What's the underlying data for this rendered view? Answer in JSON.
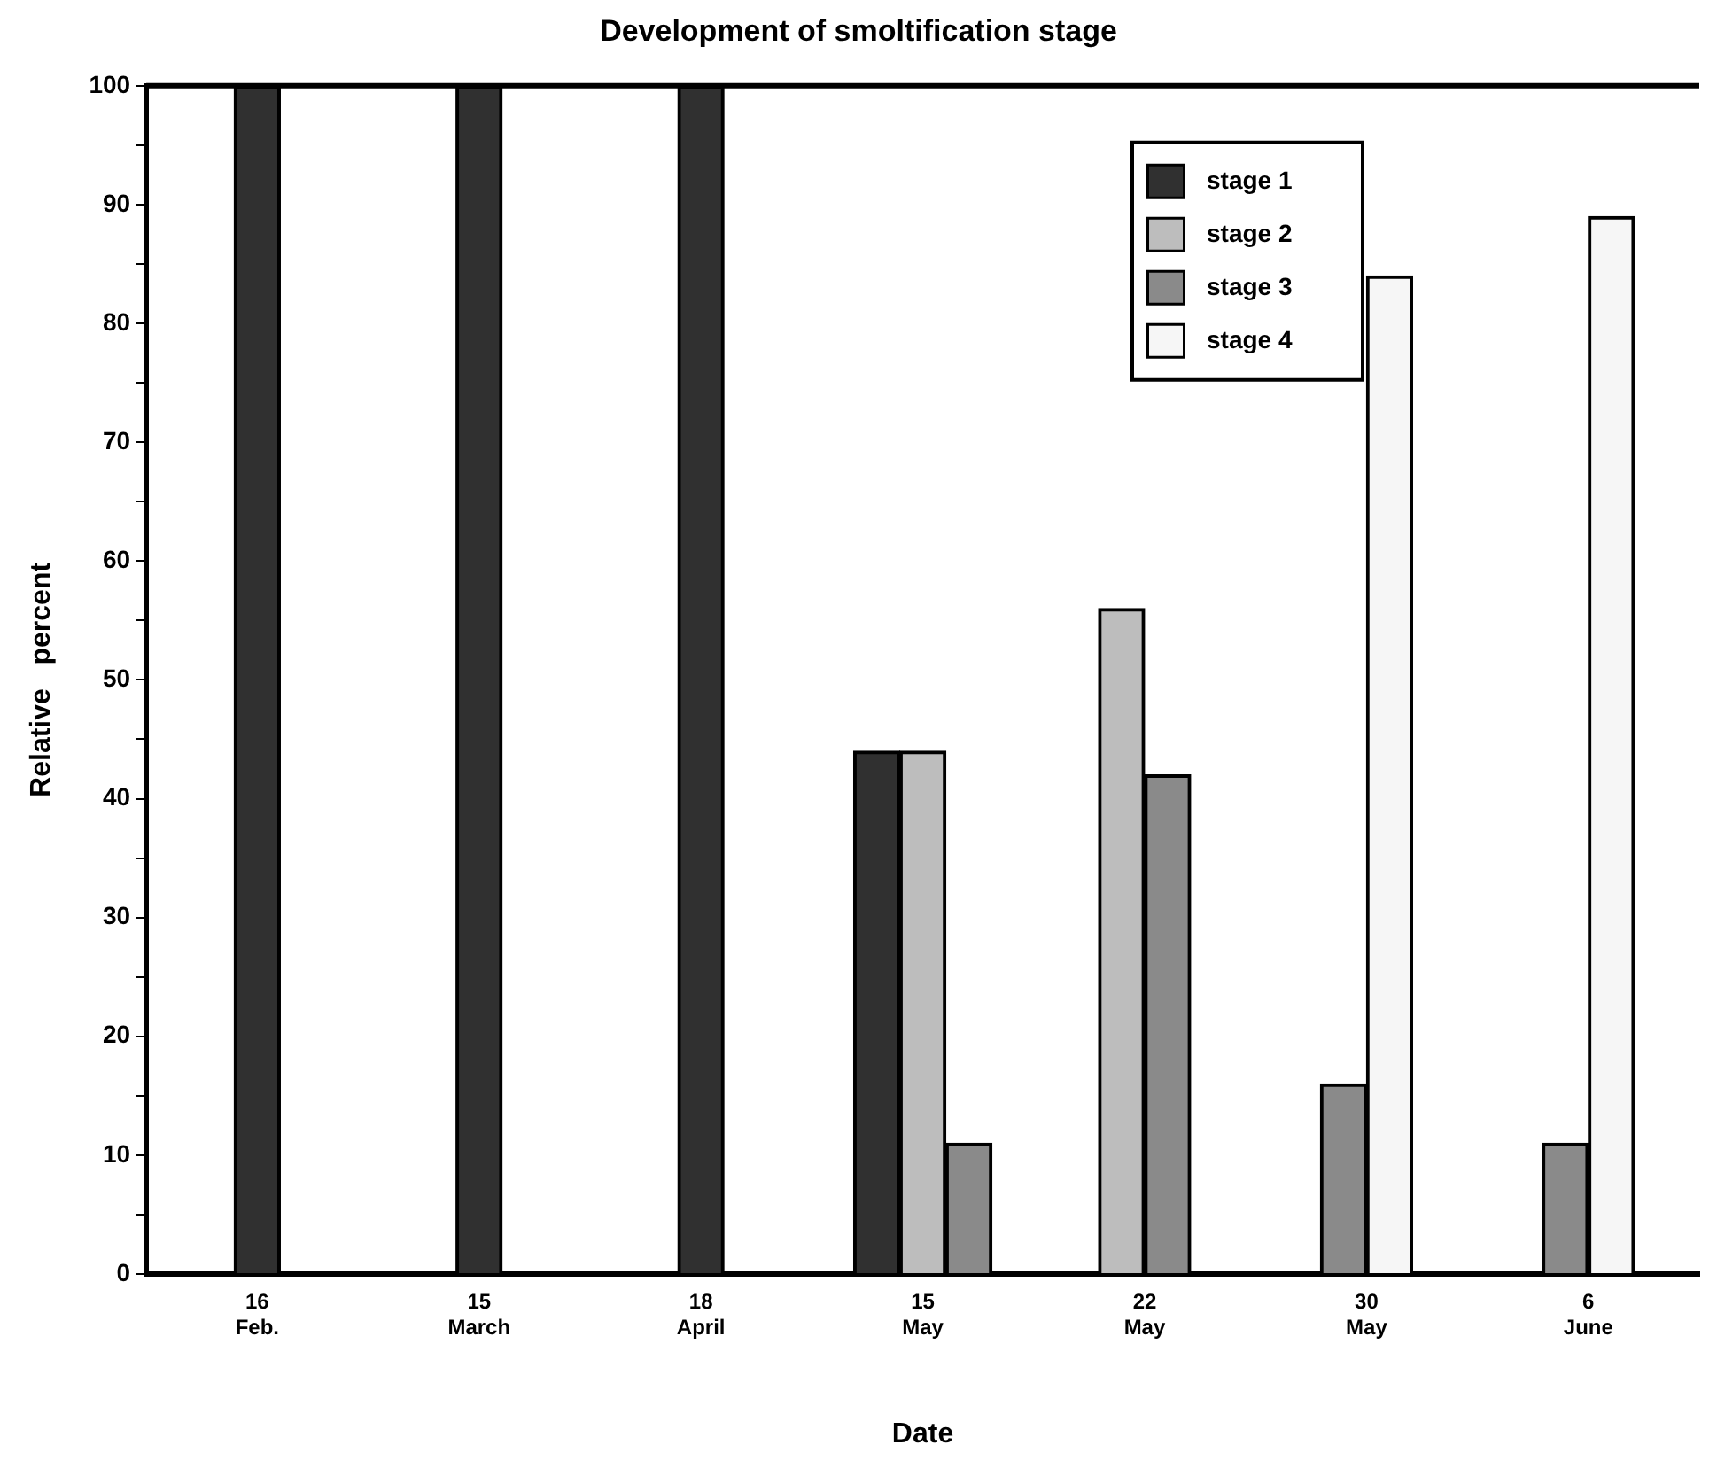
{
  "chart_data": {
    "type": "bar",
    "title": "Development of smoltification stage",
    "xlabel": "Date",
    "ylabel": "Relative   percent",
    "categories": [
      "16 Feb.",
      "15 March",
      "18 April",
      "15 May",
      "22 May",
      "30 May",
      "6 June"
    ],
    "series": [
      {
        "name": "stage 1",
        "color": "#303030",
        "values": [
          100,
          100,
          100,
          44,
          null,
          null,
          null
        ]
      },
      {
        "name": "stage 2",
        "color": "#bdbdbd",
        "values": [
          null,
          null,
          null,
          44,
          56,
          null,
          null
        ]
      },
      {
        "name": "stage 3",
        "color": "#8a8a8a",
        "values": [
          null,
          null,
          null,
          11,
          42,
          16,
          11
        ]
      },
      {
        "name": "stage 4",
        "color": "#f6f6f6",
        "values": [
          null,
          null,
          null,
          null,
          null,
          84,
          89
        ]
      }
    ],
    "ylim": [
      0,
      100
    ],
    "yticks": [
      0,
      {
        "value": 5,
        "label": null
      },
      10,
      {
        "value": 15,
        "label": null
      },
      20,
      {
        "value": 25,
        "label": null
      },
      30,
      {
        "value": 35,
        "label": null
      },
      40,
      {
        "value": 45,
        "label": null
      },
      50,
      {
        "value": 55,
        "label": null
      },
      60,
      {
        "value": 65,
        "label": null
      },
      70,
      {
        "value": 75,
        "label": null
      },
      80,
      {
        "value": 85,
        "label": null
      },
      90,
      {
        "value": 95,
        "label": null
      },
      100
    ],
    "grid": false,
    "legend": "top right"
  }
}
